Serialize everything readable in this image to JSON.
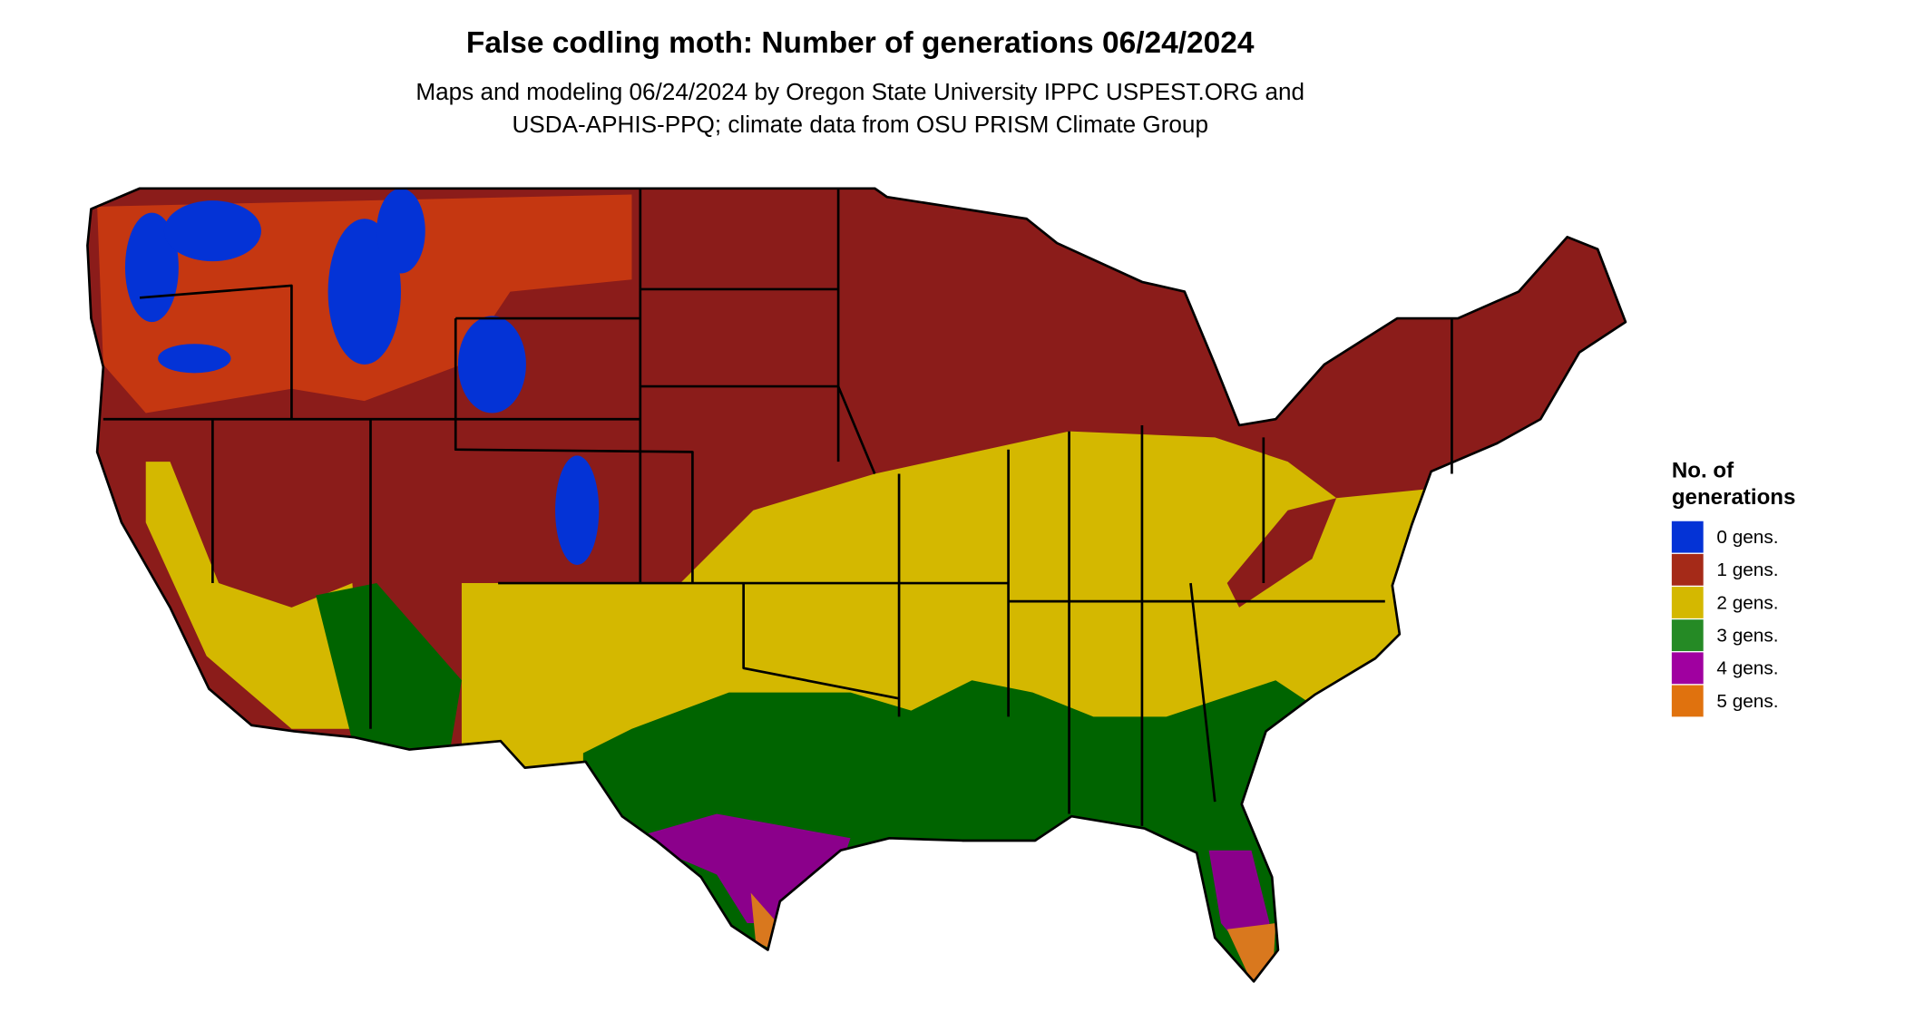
{
  "title": "False codling moth: Number of generations 06/24/2024",
  "subtitle": [
    "Maps and modeling 06/24/2024 by Oregon State University IPPC USPEST.ORG and",
    "USDA-APHIS-PPQ; climate data from OSU PRISM Climate Group"
  ],
  "legend": {
    "title": [
      "No. of",
      "generations"
    ],
    "items": [
      {
        "label": "0 gens.",
        "color": "#0433d6"
      },
      {
        "label": "1 gens.",
        "color": "#a52a18"
      },
      {
        "label": "2 gens.",
        "color": "#d4b800"
      },
      {
        "label": "3 gens.",
        "color": "#258a25"
      },
      {
        "label": "4 gens.",
        "color": "#a000a0"
      },
      {
        "label": "5 gens.",
        "color": "#e0720e"
      }
    ]
  }
}
